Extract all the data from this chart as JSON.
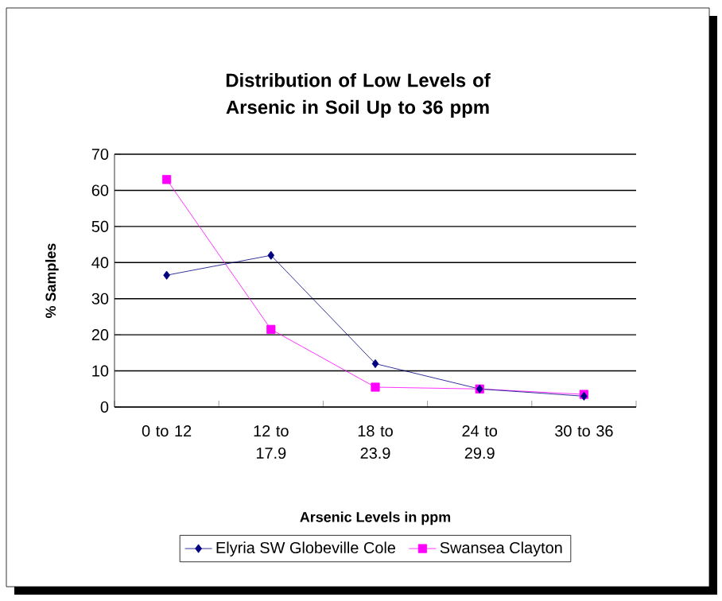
{
  "chart_data": {
    "type": "line",
    "title": "Distribution of Low Levels of Arsenic in Soil Up to 36 ppm",
    "xlabel": "Arsenic Levels in ppm",
    "ylabel": "% Samples",
    "categories": [
      "0 to 12",
      "12 to 17.9",
      "18 to 23.9",
      "24 to 29.9",
      "30 to 36"
    ],
    "series": [
      {
        "name": "Elyria  SW  Globeville  Cole",
        "color": "#000080",
        "marker": "diamond",
        "values": [
          36.5,
          42,
          12,
          5,
          3
        ]
      },
      {
        "name": "Swansea Clayton",
        "color": "#ff00ff",
        "marker": "square",
        "values": [
          63,
          21.5,
          5.5,
          5,
          3.5
        ]
      }
    ],
    "ylim": [
      0,
      70
    ],
    "yticks": [
      0,
      10,
      20,
      30,
      40,
      50,
      60,
      70
    ],
    "grid": "y",
    "legend": "bottom"
  }
}
